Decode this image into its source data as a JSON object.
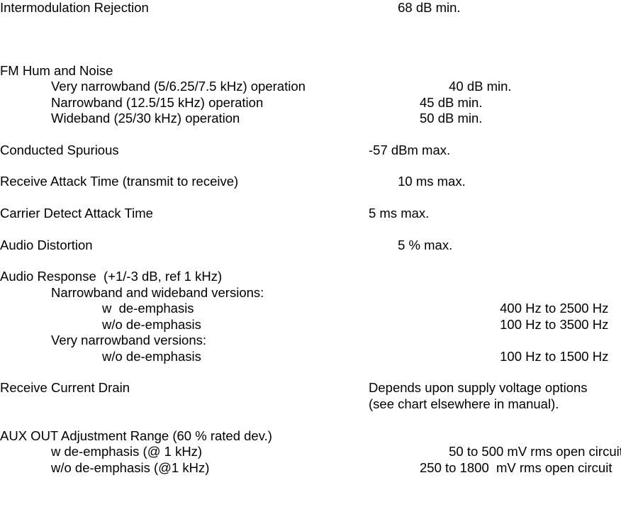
{
  "rows": [
    {
      "label": "Intermodulation Rejection",
      "value": "        68 dB min.",
      "indent": 0
    },
    {
      "spacer": 2
    },
    {
      "label": "FM Hum and Noise",
      "value": "",
      "indent": 0
    },
    {
      "label": "Very narrowband (5/6.25/7.5 kHz) operation",
      "value": "        40 dB min.",
      "indent": 1
    },
    {
      "label": "Narrowband (12.5/15 kHz) operation",
      "value": "45 dB min.",
      "indent": 1
    },
    {
      "label": "Wideband (25/30 kHz) operation",
      "value": "50 dB min.",
      "indent": 1
    },
    {
      "spacer": 1
    },
    {
      "label": "Conducted Spurious",
      "value": "-57 dBm max.",
      "indent": 0
    },
    {
      "spacer": 1
    },
    {
      "label": "Receive Attack Time (transmit to receive)",
      "value": "        10 ms max.",
      "indent": 0
    },
    {
      "spacer": 1
    },
    {
      "label": "Carrier Detect Attack Time",
      "value": "5 ms max.",
      "indent": 0
    },
    {
      "spacer": 1
    },
    {
      "label": "Audio Distortion",
      "value": "        5 % max.",
      "indent": 0
    },
    {
      "spacer": 1
    },
    {
      "label": "Audio Response  (+1/-3 dB, ref 1 kHz)",
      "value": "",
      "indent": 0
    },
    {
      "label": "Narrowband and wideband versions:",
      "value": "",
      "indent": 1
    },
    {
      "label": "w  de-emphasis",
      "value": "        400 Hz to 2500 Hz",
      "indent": 2
    },
    {
      "label": "w/o de-emphasis",
      "value": "        100 Hz to 3500 Hz",
      "indent": 2
    },
    {
      "label": "Very narrowband versions:",
      "value": "",
      "indent": 1
    },
    {
      "label": "w/o de-emphasis",
      "value": "        100 Hz to 1500 Hz",
      "indent": 2
    },
    {
      "spacer": 1
    },
    {
      "label": "Receive Current Drain",
      "value": "Depends upon supply voltage options",
      "indent": 0
    },
    {
      "label": "",
      "value": "(see chart elsewhere in manual).",
      "indent": 0
    },
    {
      "spacer": 1
    },
    {
      "label": "AUX OUT Adjustment Range (60 % rated dev.)",
      "value": "",
      "indent": 0
    },
    {
      "label": "w de-emphasis (@ 1 kHz)",
      "value": "        50 to 500 mV rms open circuit",
      "indent": 1
    },
    {
      "label": "w/o de-emphasis (@1 kHz)",
      "value": "250 to 1800  mV rms open circuit",
      "indent": 1
    }
  ]
}
